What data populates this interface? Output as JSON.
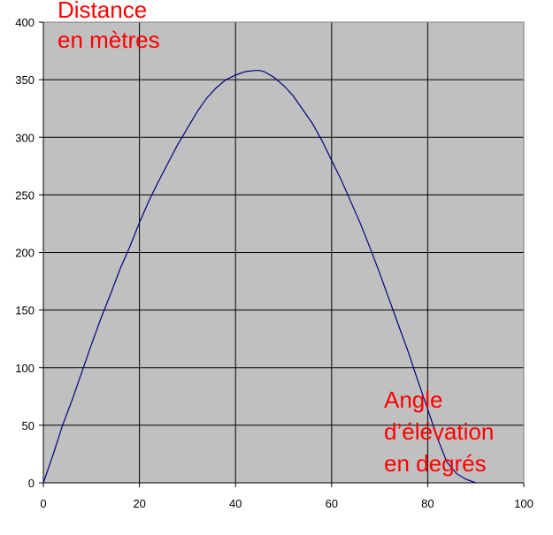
{
  "chart_data": {
    "type": "line",
    "title": "",
    "xlabel": "",
    "ylabel": "",
    "xlim": [
      0,
      100
    ],
    "ylim": [
      0,
      400
    ],
    "x_ticks": [
      "0",
      "20",
      "40",
      "60",
      "80",
      "100"
    ],
    "y_ticks": [
      "0",
      "50",
      "100",
      "150",
      "200",
      "250",
      "300",
      "350",
      "400"
    ],
    "grid": true,
    "legend": "none",
    "annotations": {
      "y_axis_note": [
        "Distance",
        "en mètres"
      ],
      "x_axis_note": [
        "Angle",
        "d’élévation",
        "en degrés"
      ]
    },
    "series": [
      {
        "x": [
          0,
          2,
          4,
          6,
          8,
          10,
          12,
          14,
          16,
          18,
          20,
          22,
          24,
          26,
          28,
          30,
          32,
          34,
          36,
          38,
          40,
          42,
          44,
          45,
          46,
          48,
          50,
          52,
          54,
          56,
          58,
          60,
          62,
          64,
          66,
          68,
          70,
          72,
          74,
          76,
          78,
          80,
          82,
          84,
          86,
          88,
          90
        ],
        "y": [
          0,
          24,
          50,
          72,
          96,
          120,
          143,
          164,
          186,
          205,
          226,
          245,
          262,
          278,
          294,
          308,
          322,
          334,
          343,
          350,
          354,
          357,
          358,
          358,
          357,
          352,
          345,
          336,
          324,
          312,
          297,
          280,
          263,
          244,
          225,
          204,
          182,
          159,
          136,
          113,
          88,
          64,
          39,
          18,
          8,
          3,
          0
        ]
      }
    ],
    "colors": {
      "plot_background": "#c0c0c0",
      "grid": "#000000",
      "line": "#000080",
      "annotation": "#ff0000"
    }
  }
}
